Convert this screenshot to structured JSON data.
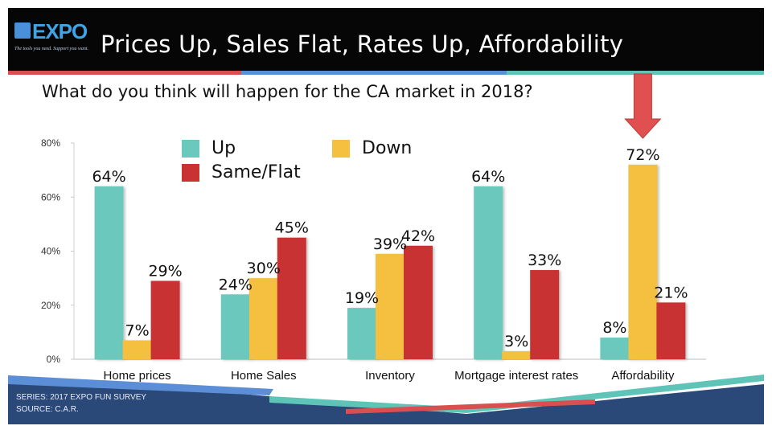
{
  "header": {
    "logo_text": "EXPO",
    "logo_tagline": "The tools you need. Support you want.",
    "title": "Prices Up, Sales Flat, Rates Up, Affordability"
  },
  "subtitle": "What do you think will happen for the CA market in 2018?",
  "footer": {
    "series": "SERIES: 2017 EXPO FUN SURVEY",
    "source": "SOURCE:  C.A.R."
  },
  "colors": {
    "up": "#6bc8bd",
    "down": "#f5c040",
    "same_flat": "#c83232",
    "arrow": "#e05050",
    "header_bg": "#060606",
    "stripe_red": "#d94f4f",
    "stripe_blue": "#5b8ed6",
    "stripe_teal": "#5fc4b8",
    "footer_navy": "#2a4878"
  },
  "chart_data": {
    "type": "bar",
    "categories": [
      "Home prices",
      "Home Sales",
      "Inventory",
      "Mortgage interest rates",
      "Affordability"
    ],
    "series": [
      {
        "name": "Up",
        "values": [
          64,
          24,
          19,
          64,
          8
        ],
        "labels": [
          "64%",
          "24%",
          "19%",
          "64%",
          "8%"
        ]
      },
      {
        "name": "Down",
        "values": [
          7,
          30,
          39,
          3,
          72
        ],
        "labels": [
          "7%",
          "30%",
          "39%",
          "3%",
          "72%"
        ]
      },
      {
        "name": "Same/Flat",
        "values": [
          29,
          45,
          42,
          33,
          21
        ],
        "labels": [
          "29%",
          "45%",
          "42%",
          "33%",
          "21%"
        ]
      }
    ],
    "ylim": [
      0,
      80
    ],
    "yticks": [
      0,
      20,
      40,
      60,
      80
    ],
    "ytick_labels": [
      "0%",
      "20%",
      "40%",
      "60%",
      "80%"
    ],
    "legend_position": "top-center",
    "grid": false,
    "annotation": "down arrow pointing to Affordability"
  }
}
